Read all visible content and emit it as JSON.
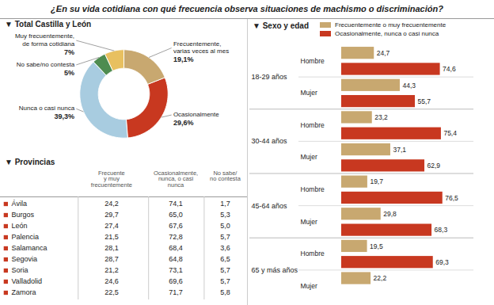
{
  "chart_data": [
    {
      "type": "pie",
      "title": "¿En su vida cotidiana con qué frecuencia observa situaciones de machismo o discriminación?",
      "subtitle": "▼ Total Castilla y León",
      "categories": [
        "Frecuentemente,\nvarias veces al mes",
        "Ocasionalmente",
        "Nunca o casi nunca",
        "No sabe/no contesta",
        "Muy frecuentemente,\nde forma cotidiana"
      ],
      "values": [
        19.1,
        29.6,
        39.3,
        5.0,
        7.0
      ],
      "value_labels": [
        "19,1%",
        "29,6%",
        "39,3%",
        "5%",
        "7%"
      ],
      "colors": [
        "#c8a870",
        "#c83820",
        "#a8cce0",
        "#4e8c50",
        "#e8c060"
      ],
      "data_labels": true
    },
    {
      "type": "table",
      "title": "▼ Provincias",
      "categories": [
        "Ávila",
        "Burgos",
        "León",
        "Palencia",
        "Salamanca",
        "Segovia",
        "Soria",
        "Valladolid",
        "Zamora"
      ],
      "color": "#c83820",
      "series": [
        {
          "name": "Frecuente\ny muy\nfrecuentemente",
          "values": [
            24.2,
            29.7,
            27.4,
            21.5,
            28.1,
            28.7,
            21.2,
            24.6,
            22.5
          ],
          "value_labels": [
            "24,2",
            "29,7",
            "27,4",
            "21,5",
            "28,1",
            "28,7",
            "21,2",
            "24,6",
            "22,5"
          ]
        },
        {
          "name": "Ocasionalmente,\nnunca, o casi\nnunca",
          "values": [
            74.1,
            65.0,
            67.6,
            72.8,
            68.4,
            64.8,
            73.1,
            69.6,
            71.7
          ],
          "value_labels": [
            "74,1",
            "65,0",
            "67,6",
            "72,8",
            "68,4",
            "64,8",
            "73,1",
            "69,6",
            "71,7"
          ]
        },
        {
          "name": "No sabe/\nno contesta",
          "values": [
            1.7,
            5.3,
            5.0,
            5.7,
            3.6,
            6.5,
            5.7,
            5.7,
            5.8
          ],
          "value_labels": [
            "1,7",
            "5,3",
            "5,0",
            "5,7",
            "3,6",
            "6,5",
            "5,7",
            "5,7",
            "5,8"
          ]
        }
      ]
    },
    {
      "type": "bar",
      "orientation": "horizontal",
      "title": "▼ Sexo y edad",
      "groups": [
        "18-29 años",
        "30-44 años",
        "45-64 años",
        "65 y más años"
      ],
      "categories": [
        "Hombre",
        "Mujer",
        "Hombre",
        "Mujer",
        "Hombre",
        "Mujer",
        "Hombre",
        "Mujer"
      ],
      "series": [
        {
          "name": "Frecuentemente o muy frecuentemente",
          "color": "#c8a870",
          "values": [
            24.7,
            44.3,
            23.2,
            37.1,
            19.7,
            29.8,
            19.5,
            22.2
          ],
          "value_labels": [
            "24,7",
            "44,3",
            "23,2",
            "37,1",
            "19,7",
            "29,8",
            "19,5",
            "22,2"
          ]
        },
        {
          "name": "Ocasionalmente, nunca o casi nunca",
          "color": "#c83820",
          "values": [
            74.6,
            55.7,
            75.4,
            62.9,
            76.5,
            68.3,
            69.3,
            null
          ],
          "value_labels": [
            "74,6",
            "55,7",
            "75,4",
            "62,9",
            "76,5",
            "68,3",
            "69,3",
            null
          ]
        }
      ],
      "xlim": [
        0,
        100
      ],
      "tick_labels": false,
      "data_labels": true
    }
  ]
}
